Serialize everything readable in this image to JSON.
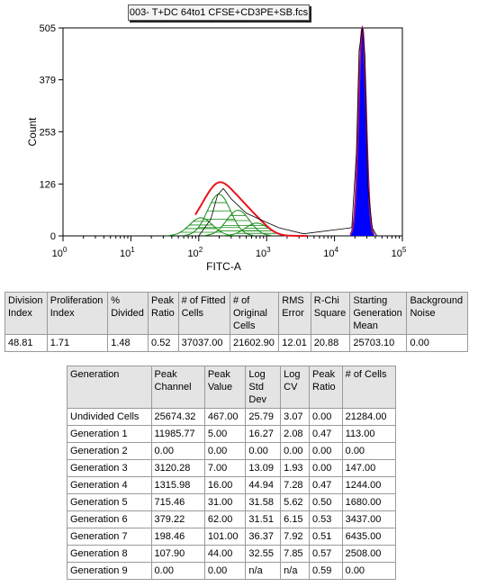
{
  "file_title": "003- T+DC 64to1 CFSE+CD3PE+SB.fcs",
  "chart_data": {
    "type": "histogram",
    "xlabel": "FITC-A",
    "ylabel": "Count",
    "x_scale": "log",
    "xlim": [
      1,
      100000
    ],
    "ylim": [
      0,
      505
    ],
    "y_ticks": [
      "0",
      "126",
      "253",
      "379",
      "505"
    ],
    "x_ticks": [
      "10^0",
      "10^1",
      "10^2",
      "10^3",
      "10^4",
      "10^5"
    ],
    "series_colors": {
      "data": "#000000",
      "fit": "#e8141c",
      "generations": "#138a13",
      "undivided_fill": "#0000ff",
      "undivided_outline": "#a0147a"
    },
    "data": [
      [
        100,
        0
      ],
      [
        150,
        40
      ],
      [
        190,
        100
      ],
      [
        230,
        115
      ],
      [
        300,
        90
      ],
      [
        500,
        55
      ],
      [
        800,
        40
      ],
      [
        1500,
        20
      ],
      [
        3500,
        5
      ],
      [
        18000,
        20
      ],
      [
        21000,
        200
      ],
      [
        23000,
        450
      ],
      [
        25700,
        505
      ],
      [
        28000,
        440
      ],
      [
        31000,
        120
      ],
      [
        36000,
        20
      ],
      [
        42000,
        0
      ]
    ],
    "generations": [
      {
        "name": "Generation 5",
        "peak_channel": 715.46,
        "peak_value": 31
      },
      {
        "name": "Generation 6",
        "peak_channel": 379.22,
        "peak_value": 62
      },
      {
        "name": "Generation 7",
        "peak_channel": 198.46,
        "peak_value": 101
      },
      {
        "name": "Generation 8",
        "peak_channel": 107.9,
        "peak_value": 44
      },
      {
        "name": "Undivided",
        "peak_channel": 25674.32,
        "peak_value": 467
      }
    ]
  },
  "summary": {
    "headers": [
      [
        "Division",
        "Index"
      ],
      [
        "Proliferation",
        "Index"
      ],
      [
        "%",
        "Divided"
      ],
      [
        "Peak",
        "Ratio"
      ],
      [
        "# of Fitted",
        "Cells"
      ],
      [
        "# of",
        "Original",
        "Cells"
      ],
      [
        "RMS",
        "Error"
      ],
      [
        "R-Chi",
        "Square"
      ],
      [
        "Starting",
        "Generation",
        "Mean"
      ],
      [
        "Background",
        "Noise"
      ]
    ],
    "values": [
      "48.81",
      "1.71",
      "1.48",
      "0.52",
      "37037.00",
      "21602.90",
      "12.01",
      "20.88",
      "25703.10",
      "0.00"
    ]
  },
  "generations_table": {
    "headers": [
      [
        "Generation"
      ],
      [
        "Peak",
        "Channel"
      ],
      [
        "Peak",
        "Value"
      ],
      [
        "Log",
        "Std",
        "Dev"
      ],
      [
        "Log",
        "CV"
      ],
      [
        "Peak",
        "Ratio"
      ],
      [
        "# of Cells"
      ]
    ],
    "rows": [
      [
        "Undivided Cells",
        "25674.32",
        "467.00",
        "25.79",
        "3.07",
        "0.00",
        "21284.00"
      ],
      [
        "Generation 1",
        "11985.77",
        "5.00",
        "16.27",
        "2.08",
        "0.47",
        "113.00"
      ],
      [
        "Generation 2",
        "0.00",
        "0.00",
        "0.00",
        "0.00",
        "0.00",
        "0.00"
      ],
      [
        "Generation 3",
        "3120.28",
        "7.00",
        "13.09",
        "1.93",
        "0.00",
        "147.00"
      ],
      [
        "Generation 4",
        "1315.98",
        "16.00",
        "44.94",
        "7.28",
        "0.47",
        "1244.00"
      ],
      [
        "Generation 5",
        "715.46",
        "31.00",
        "31.58",
        "5.62",
        "0.50",
        "1680.00"
      ],
      [
        "Generation 6",
        "379.22",
        "62.00",
        "31.51",
        "6.15",
        "0.53",
        "3437.00"
      ],
      [
        "Generation 7",
        "198.46",
        "101.00",
        "36.37",
        "7.92",
        "0.51",
        "6435.00"
      ],
      [
        "Generation 8",
        "107.90",
        "44.00",
        "32.55",
        "7.85",
        "0.57",
        "2508.00"
      ],
      [
        "Generation 9",
        "0.00",
        "0.00",
        "n/a",
        "n/a",
        "0.59",
        "0.00"
      ]
    ]
  }
}
